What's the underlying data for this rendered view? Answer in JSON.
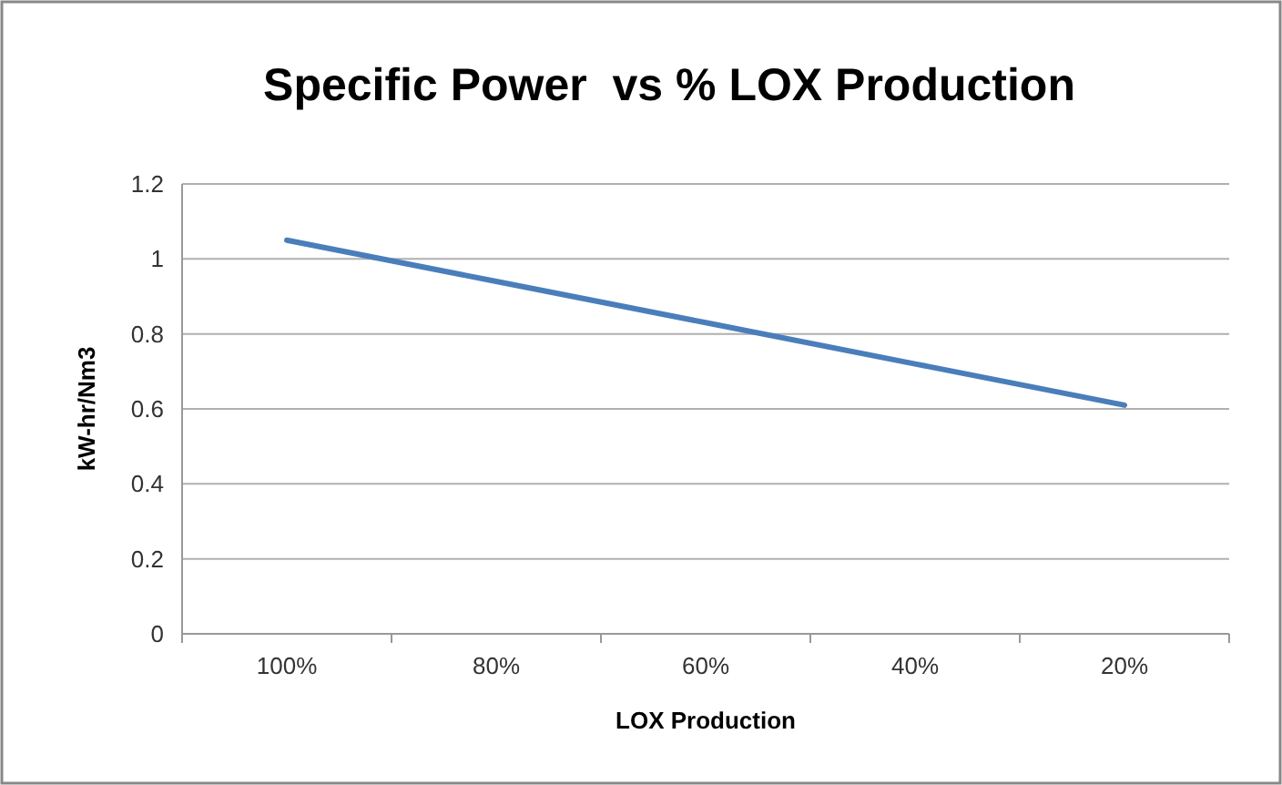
{
  "chart_data": {
    "type": "line",
    "title": "Specific Power  vs % LOX Production",
    "xlabel": "LOX Production",
    "ylabel": "kW-hr/Nm3",
    "categories": [
      "100%",
      "80%",
      "60%",
      "40%",
      "20%"
    ],
    "series": [
      {
        "color": "#4a7ebb",
        "values": [
          1.05,
          0.94,
          0.83,
          0.72,
          0.61
        ]
      }
    ],
    "ylim": [
      0,
      1.2
    ],
    "yticks": [
      0,
      0.2,
      0.4,
      0.6,
      0.8,
      1,
      1.2
    ],
    "grid": "y",
    "marker": "none",
    "line_style": "solid"
  }
}
